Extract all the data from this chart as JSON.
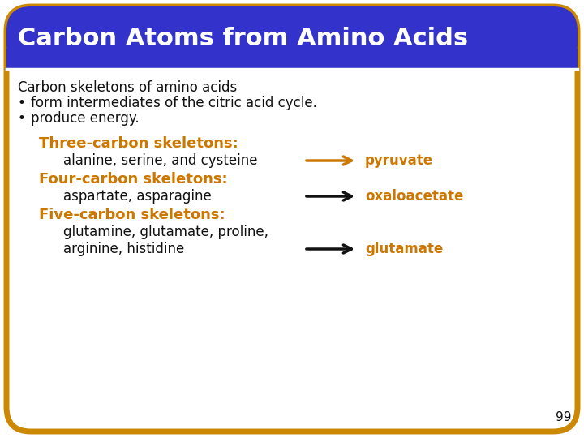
{
  "title": "Carbon Atoms from Amino Acids",
  "title_bg_color": "#3333cc",
  "title_text_color": "#ffffff",
  "border_color": "#cc8800",
  "bg_color": "#ffffff",
  "orange_color": "#cc7700",
  "black_color": "#111111",
  "bullet_line1": "Carbon skeletons of amino acids",
  "bullet1": "form intermediates of the citric acid cycle.",
  "bullet2": "produce energy.",
  "heading1": "Three-carbon skeletons:",
  "line1_left": "alanine, serine, and cysteine",
  "line1_right": "pyruvate",
  "heading2": "Four-carbon skeletons:",
  "line2_left": "aspartate, asparagine",
  "line2_right": "oxaloacetate",
  "heading3": "Five-carbon skeletons:",
  "line3a_left": "glutamine, glutamate, proline,",
  "line3b_left": "arginine, histidine",
  "line3_right": "glutamate",
  "page_number": "99",
  "arrow1_color": "#cc7700",
  "arrow2_color": "#111111",
  "arrow3_color": "#111111",
  "title_fontsize": 22,
  "body_fontsize": 12,
  "heading_fontsize": 13
}
